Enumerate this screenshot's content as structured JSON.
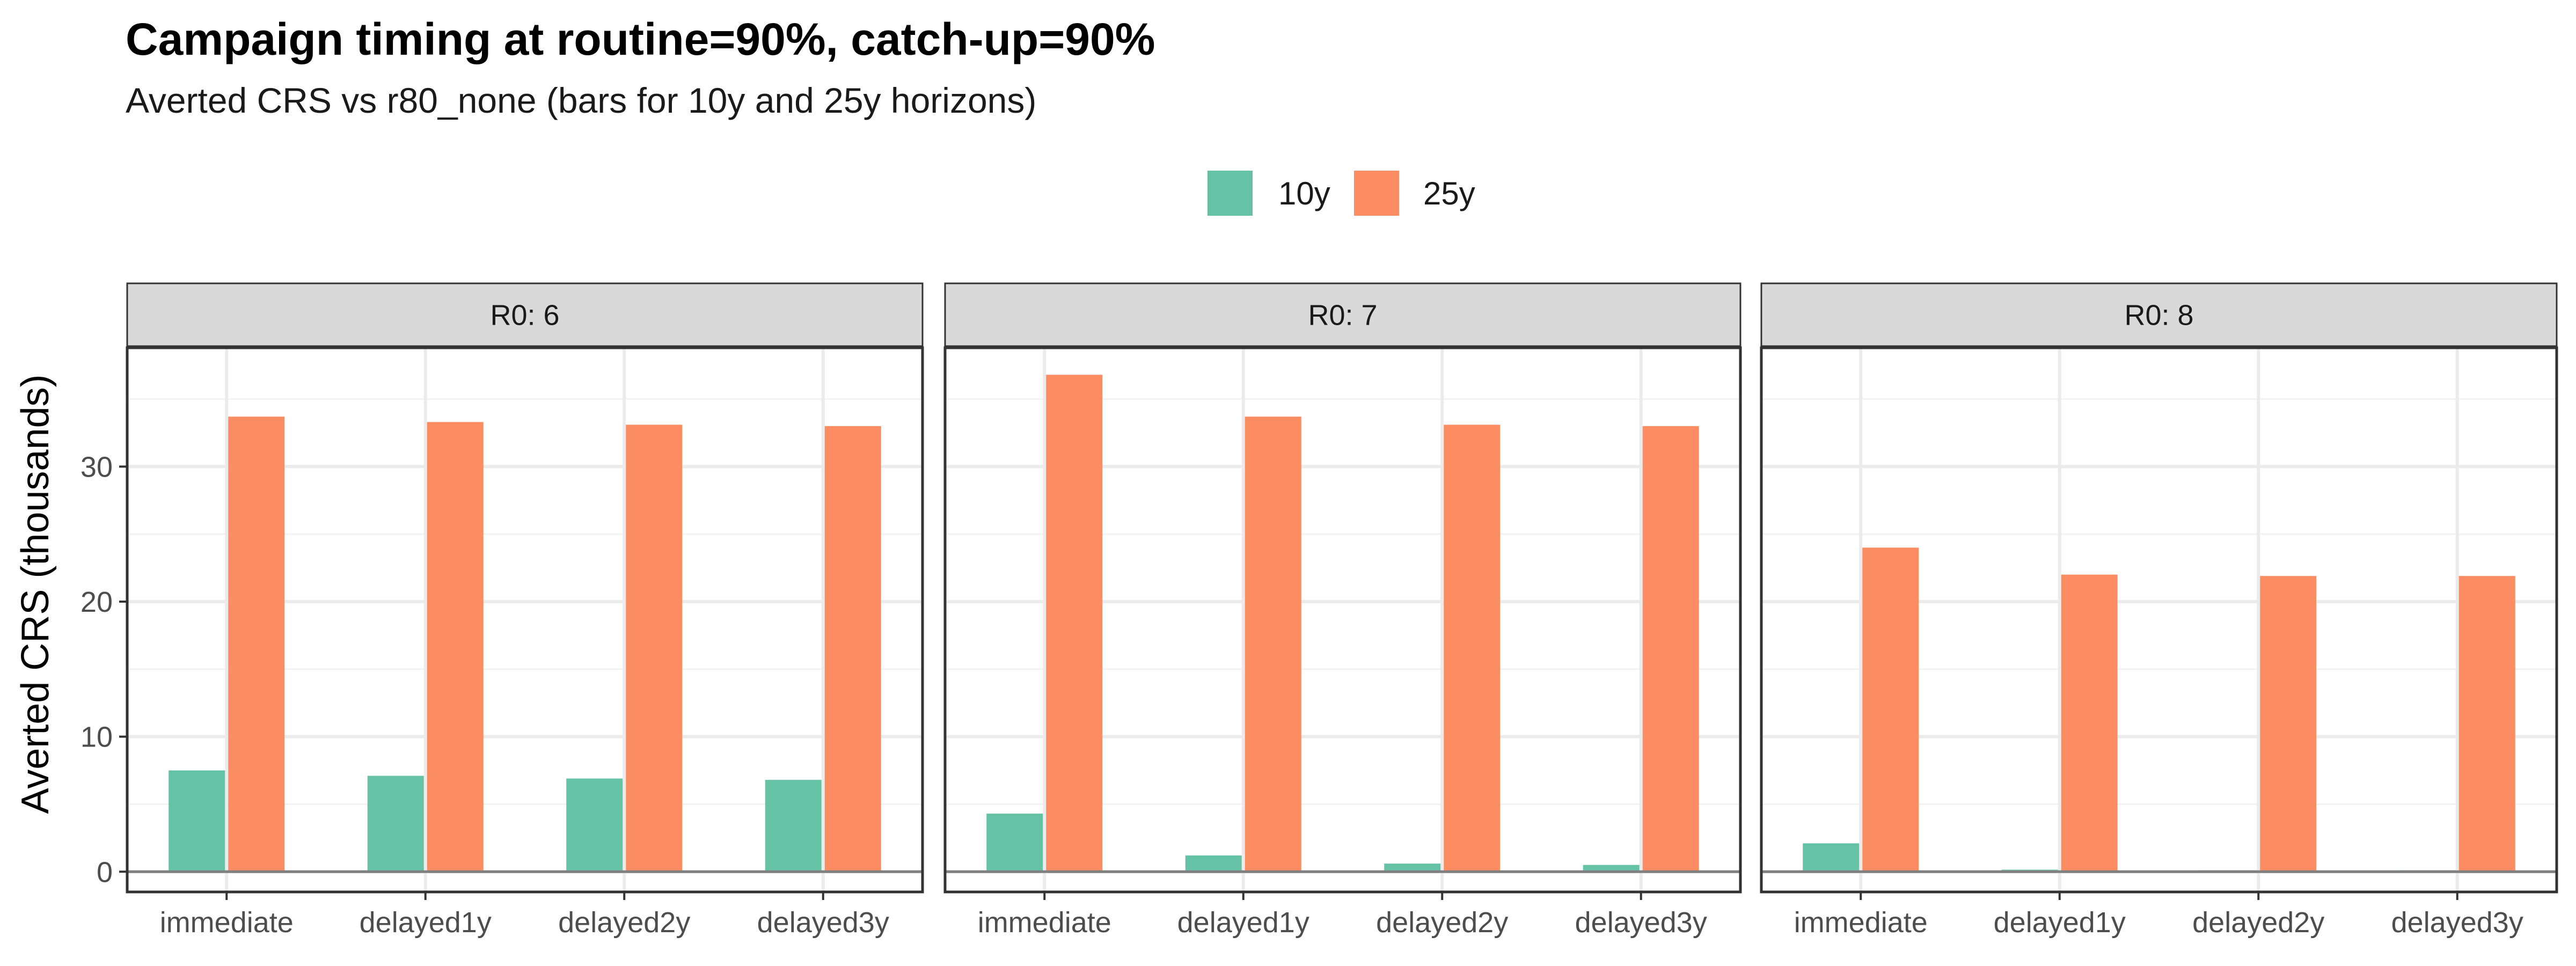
{
  "chart_data": {
    "type": "bar",
    "title": "Campaign timing at routine=90%, catch-up=90%",
    "subtitle": "Averted CRS vs r80_none (bars for 10y and 25y horizons)",
    "ylabel": "Averted CRS (thousands)",
    "xlabel": "",
    "ylim": [
      -1.5,
      38.8
    ],
    "yticks": [
      0,
      10,
      20,
      30
    ],
    "grid": true,
    "legend_position": "top",
    "categories": [
      "immediate",
      "delayed1y",
      "delayed2y",
      "delayed3y"
    ],
    "series_colors": {
      "10y": "#66c2a5",
      "25y": "#fc8d62"
    },
    "facets": [
      {
        "label": "R0: 6",
        "series": [
          {
            "name": "10y",
            "values": [
              7.5,
              7.1,
              6.9,
              6.8
            ]
          },
          {
            "name": "25y",
            "values": [
              33.7,
              33.3,
              33.1,
              33.0
            ]
          }
        ]
      },
      {
        "label": "R0: 7",
        "series": [
          {
            "name": "10y",
            "values": [
              4.3,
              1.2,
              0.6,
              0.5
            ]
          },
          {
            "name": "25y",
            "values": [
              36.8,
              33.7,
              33.1,
              33.0
            ]
          }
        ]
      },
      {
        "label": "R0: 8",
        "series": [
          {
            "name": "10y",
            "values": [
              2.1,
              0.15,
              0.1,
              0.1
            ]
          },
          {
            "name": "25y",
            "values": [
              24.0,
              22.0,
              21.9,
              21.9
            ]
          }
        ]
      }
    ]
  }
}
